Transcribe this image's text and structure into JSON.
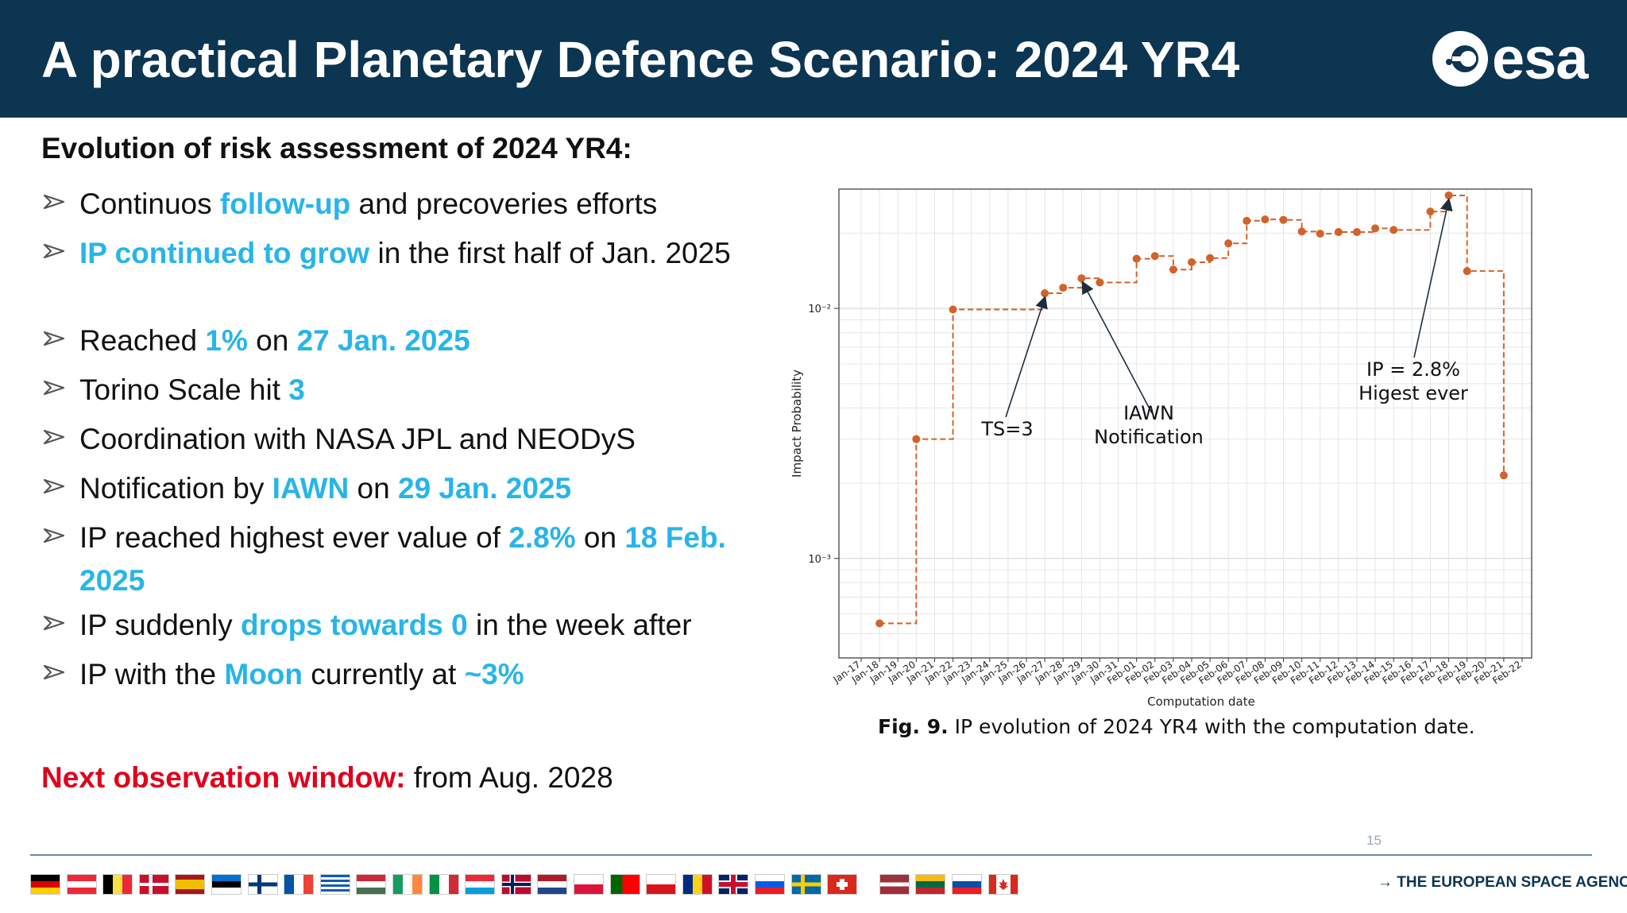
{
  "header": {
    "title": "A practical Planetary Defence Scenario: 2024 YR4",
    "logo_text": "esa"
  },
  "heading": "Evolution of risk assessment of 2024 YR4:",
  "bullets": [
    {
      "segments": [
        {
          "text": "Continuos ",
          "hl": false
        },
        {
          "text": "follow-up",
          "hl": true
        },
        {
          "text": " and precoveries efforts",
          "hl": false
        }
      ]
    },
    {
      "segments": [
        {
          "text": "IP continued to grow",
          "hl": true
        },
        {
          "text": " in the first half of Jan. 2025",
          "hl": false
        }
      ]
    },
    {
      "segments": [
        {
          "text": "Reached ",
          "hl": false
        },
        {
          "text": "1%",
          "hl": true
        },
        {
          "text": " on ",
          "hl": false
        },
        {
          "text": "27 Jan. 2025",
          "hl": true
        }
      ]
    },
    {
      "segments": [
        {
          "text": "Torino Scale hit ",
          "hl": false
        },
        {
          "text": "3",
          "hl": true
        }
      ]
    },
    {
      "segments": [
        {
          "text": "Coordination with NASA JPL and NEODyS",
          "hl": false
        }
      ]
    },
    {
      "segments": [
        {
          "text": "Notification by ",
          "hl": false
        },
        {
          "text": "IAWN",
          "hl": true
        },
        {
          "text": " on ",
          "hl": false
        },
        {
          "text": "29 Jan. 2025",
          "hl": true
        }
      ]
    },
    {
      "segments": [
        {
          "text": "IP reached highest ever value of ",
          "hl": false
        },
        {
          "text": "2.8%",
          "hl": true
        },
        {
          "text": " on ",
          "hl": false
        },
        {
          "text": "18 Feb. 2025",
          "hl": true
        }
      ]
    },
    {
      "segments": [
        {
          "text": "IP suddenly ",
          "hl": false
        },
        {
          "text": "drops towards 0",
          "hl": true
        },
        {
          "text": " in the week after",
          "hl": false
        }
      ]
    },
    {
      "segments": [
        {
          "text": "IP with the ",
          "hl": false
        },
        {
          "text": "Moon",
          "hl": true
        },
        {
          "text": " currently at ",
          "hl": false
        },
        {
          "text": "~3%",
          "hl": true
        }
      ]
    }
  ],
  "next_window": {
    "label": "Next observation window:",
    "text": " from Aug. 2028"
  },
  "caption": {
    "bold": "Fig. 9.",
    "text": " IP evolution of 2024 YR4 with the computation date."
  },
  "page_number": "15",
  "agency": "→ THE EUROPEAN SPACE AGENCY",
  "colors": {
    "header_bg": "#0b3551",
    "highlight": "#27b5e9",
    "red": "#e0001b",
    "series": "#d2622a"
  },
  "flags": [
    "germany",
    "austria",
    "belgium",
    "denmark",
    "spain",
    "estonia",
    "finland",
    "france",
    "greece",
    "hungary",
    "ireland",
    "italy",
    "luxembourg",
    "norway",
    "netherlands",
    "poland",
    "portugal",
    "czechia",
    "romania",
    "united-kingdom",
    "slovenia",
    "sweden",
    "switzerland",
    "latvia",
    "lithuania",
    "slovakia",
    "canada"
  ],
  "chart_data": {
    "type": "line",
    "xlabel": "Computation date",
    "ylabel": "Impact Probability",
    "yscale": "log",
    "ylim": [
      0.0004,
      0.03
    ],
    "yticks": [
      {
        "value": 0.01,
        "label": "10⁻²"
      },
      {
        "value": 0.001,
        "label": "10⁻³"
      }
    ],
    "categories": [
      "Jan-17",
      "Jan-18",
      "Jan-19",
      "Jan-20",
      "Jan-21",
      "Jan-22",
      "Jan-23",
      "Jan-24",
      "Jan-25",
      "Jan-26",
      "Jan-27",
      "Jan-28",
      "Jan-29",
      "Jan-30",
      "Jan-31",
      "Feb-01",
      "Feb-02",
      "Feb-03",
      "Feb-04",
      "Feb-05",
      "Feb-06",
      "Feb-07",
      "Feb-08",
      "Feb-09",
      "Feb-10",
      "Feb-11",
      "Feb-12",
      "Feb-13",
      "Feb-14",
      "Feb-15",
      "Feb-16",
      "Feb-17",
      "Feb-18",
      "Feb-19",
      "Feb-20",
      "Feb-21",
      "Feb-22"
    ],
    "grid": true,
    "series": [
      {
        "points": [
          {
            "x": "Jan-18",
            "y": 0.00055
          },
          {
            "x": "Jan-20",
            "y": 0.003
          },
          {
            "x": "Jan-22",
            "y": 0.0099
          },
          {
            "x": "Jan-27",
            "y": 0.0115
          },
          {
            "x": "Jan-28",
            "y": 0.0121
          },
          {
            "x": "Jan-29",
            "y": 0.0132
          },
          {
            "x": "Jan-30",
            "y": 0.0127
          },
          {
            "x": "Feb-01",
            "y": 0.0158
          },
          {
            "x": "Feb-02",
            "y": 0.0162
          },
          {
            "x": "Feb-03",
            "y": 0.0143
          },
          {
            "x": "Feb-04",
            "y": 0.0153
          },
          {
            "x": "Feb-05",
            "y": 0.0159
          },
          {
            "x": "Feb-06",
            "y": 0.0182
          },
          {
            "x": "Feb-07",
            "y": 0.0224
          },
          {
            "x": "Feb-08",
            "y": 0.0227
          },
          {
            "x": "Feb-09",
            "y": 0.0226
          },
          {
            "x": "Feb-10",
            "y": 0.0203
          },
          {
            "x": "Feb-11",
            "y": 0.0199
          },
          {
            "x": "Feb-12",
            "y": 0.0202
          },
          {
            "x": "Feb-13",
            "y": 0.0202
          },
          {
            "x": "Feb-14",
            "y": 0.0209
          },
          {
            "x": "Feb-15",
            "y": 0.0206
          },
          {
            "x": "Feb-17",
            "y": 0.0244
          },
          {
            "x": "Feb-18",
            "y": 0.0283
          },
          {
            "x": "Feb-19",
            "y": 0.0141
          },
          {
            "x": "Feb-21",
            "y": 0.00215
          }
        ]
      }
    ],
    "annotations": [
      {
        "label": "TS=3",
        "target": "Jan-27"
      },
      {
        "label": "IAWN\nNotification",
        "target": "Jan-29"
      },
      {
        "label": "IP = 2.8%\nHigest ever",
        "target": "Feb-18"
      }
    ]
  }
}
